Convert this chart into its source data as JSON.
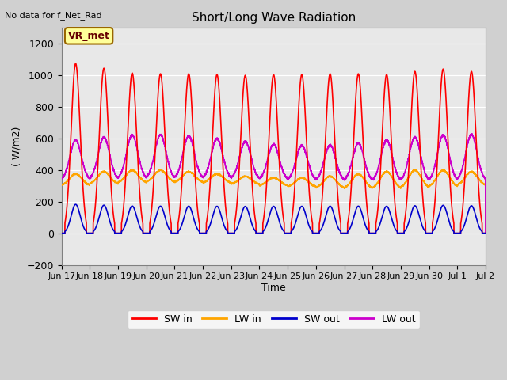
{
  "title": "Short/Long Wave Radiation",
  "ylabel": "( W/m2)",
  "xlabel": "Time",
  "note": "No data for f_Net_Rad",
  "station_label": "VR_met",
  "ylim": [
    -200,
    1300
  ],
  "yticks": [
    -200,
    0,
    200,
    400,
    600,
    800,
    1000,
    1200
  ],
  "sw_in_color": "#ff0000",
  "lw_in_color": "#ffa500",
  "sw_out_color": "#0000cc",
  "lw_out_color": "#cc00cc",
  "line_width": 1.2,
  "legend_entries": [
    "SW in",
    "LW in",
    "SW out",
    "LW out"
  ],
  "x_tick_labels": [
    "Jun 17",
    "Jun 18",
    "Jun 19",
    "Jun 20",
    "Jun 21",
    "Jun 22",
    "Jun 23",
    "Jun 24",
    "Jun 25",
    "Jun 26",
    "Jun 27",
    "Jun 28",
    "Jun 29",
    "Jun 30",
    "Jul 1",
    "Jul 2"
  ],
  "n_days": 15
}
